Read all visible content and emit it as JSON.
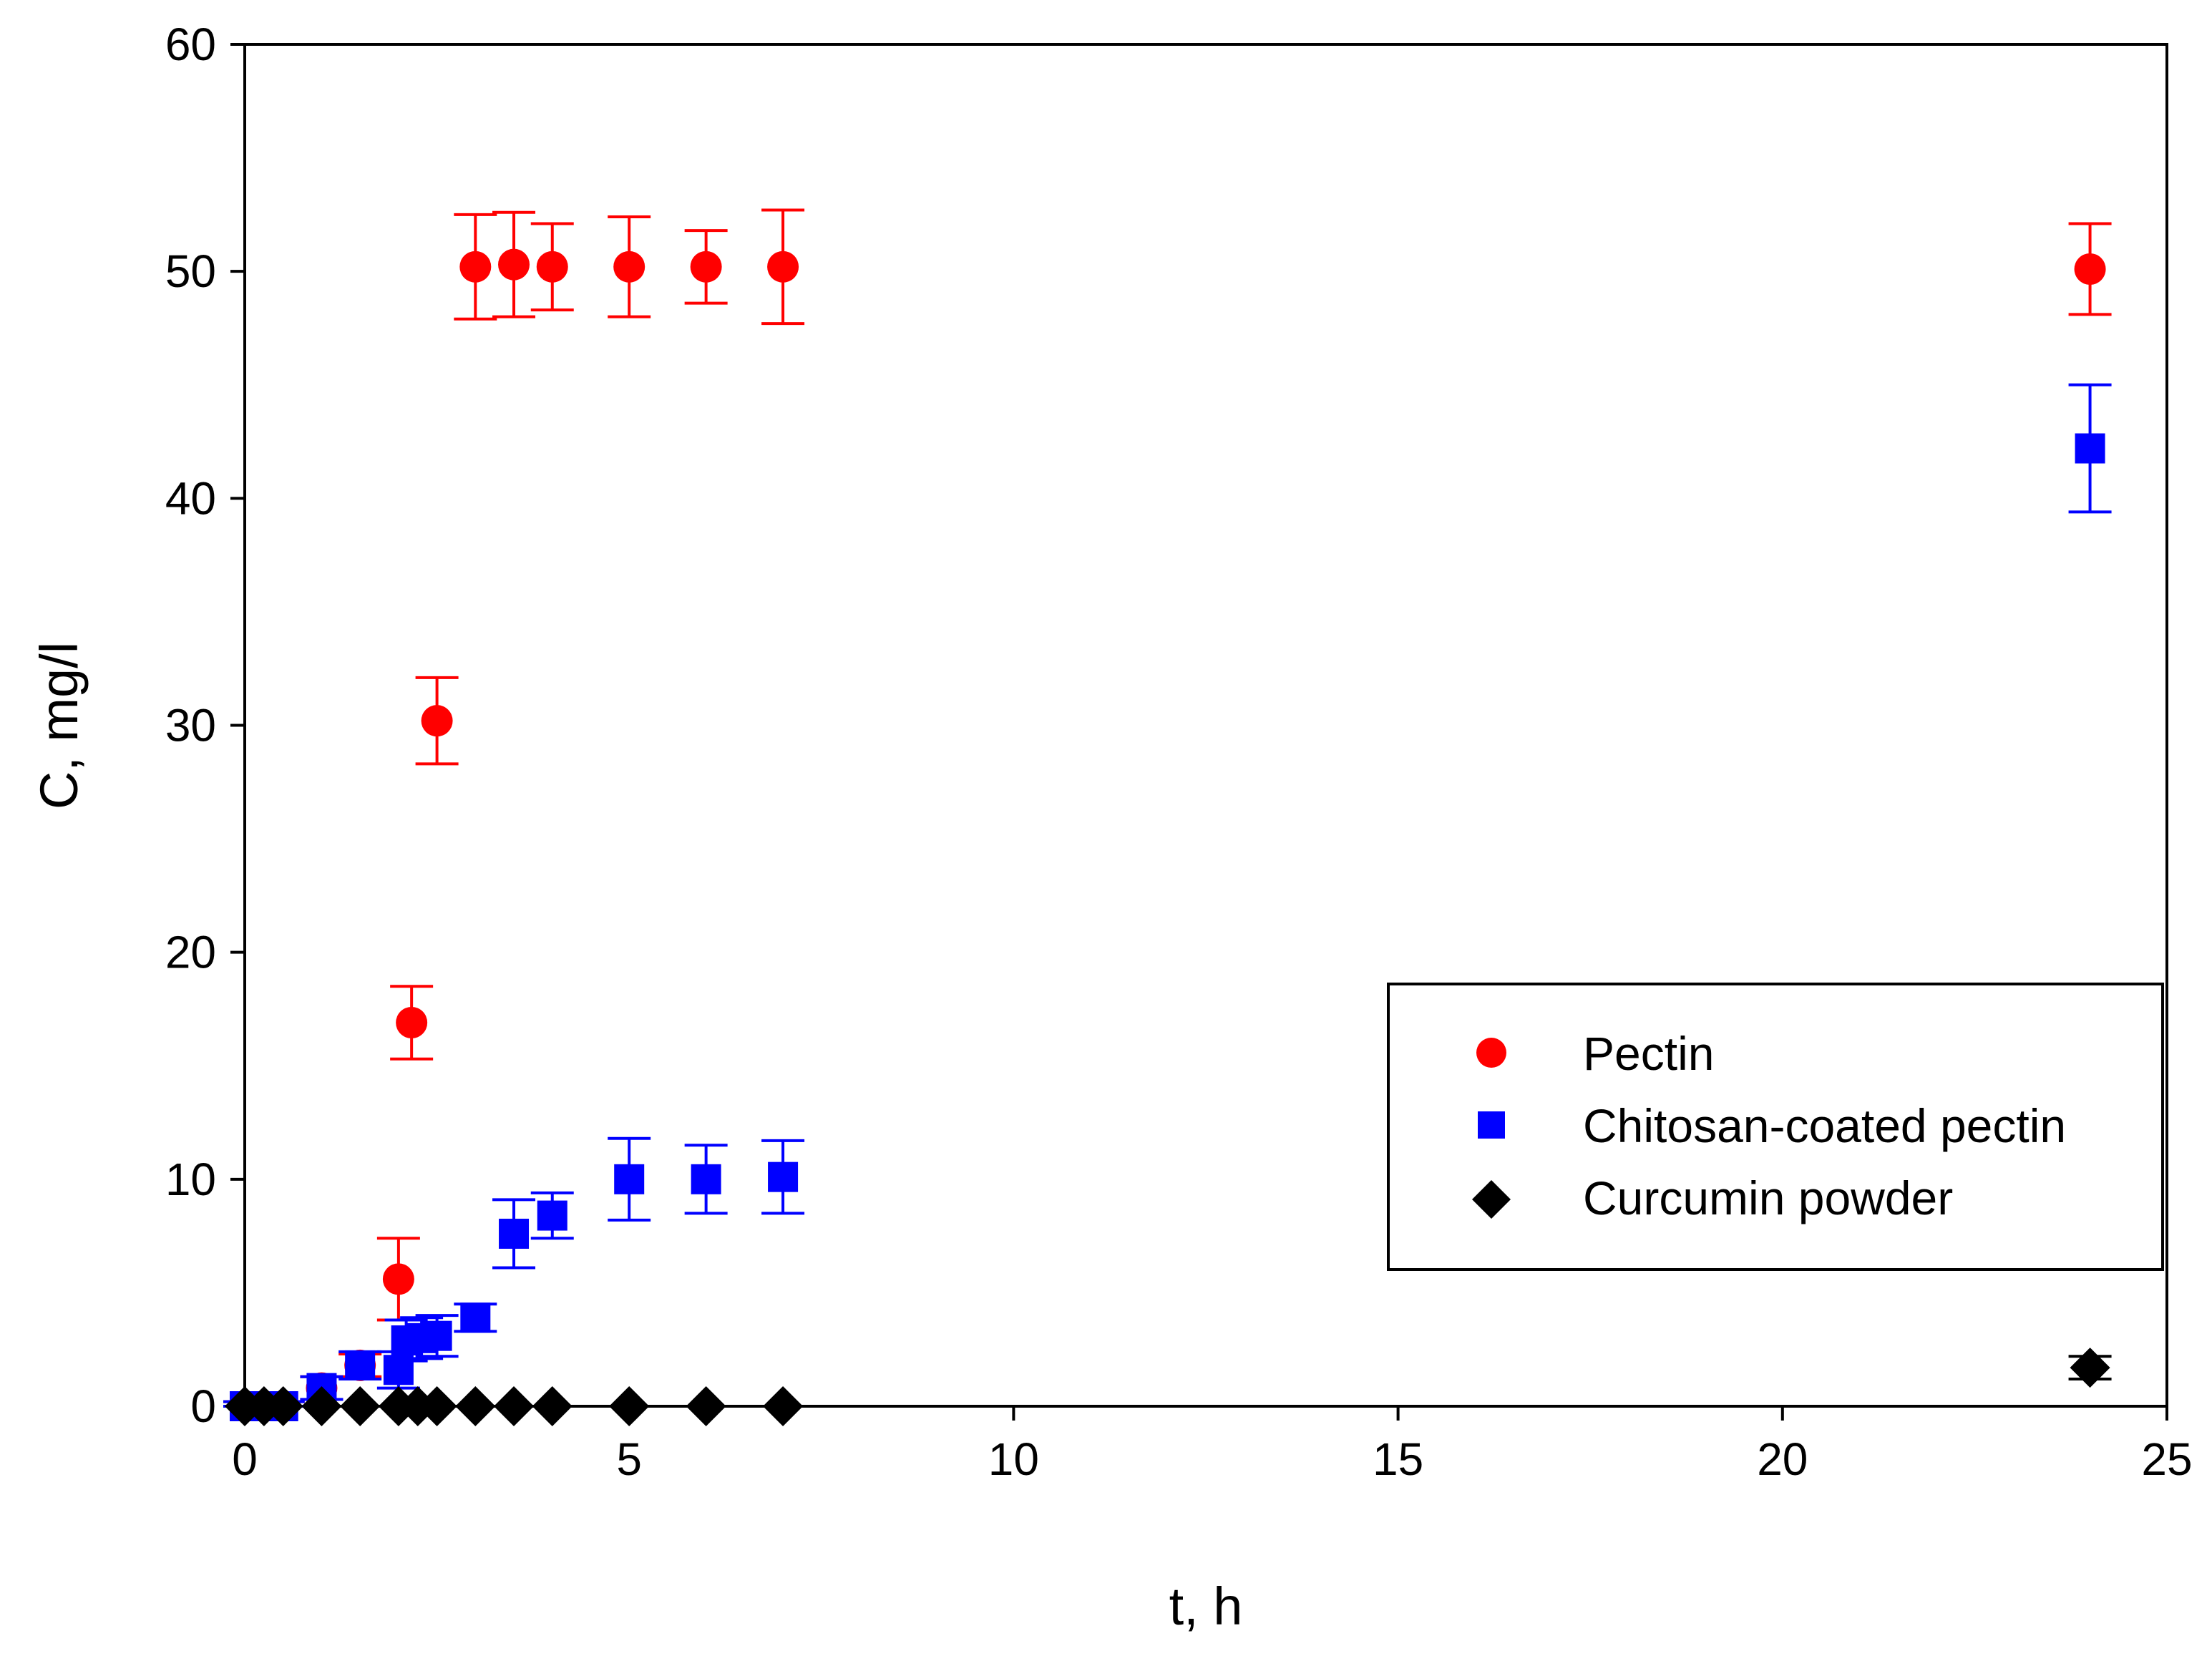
{
  "chart_data": {
    "type": "scatter",
    "title": "",
    "xlabel": "t, h",
    "ylabel": "C, mg/l",
    "xlim": [
      0,
      25
    ],
    "ylim": [
      0,
      60
    ],
    "x_ticks": [
      0,
      5,
      10,
      15,
      20,
      25
    ],
    "y_ticks": [
      0,
      10,
      20,
      30,
      40,
      50,
      60
    ],
    "x_tick_labels": [
      "0",
      "5",
      "10",
      "15",
      "20",
      "25"
    ],
    "y_tick_labels": [
      "0",
      "10",
      "20",
      "30",
      "40",
      "50",
      "60"
    ],
    "grid": false,
    "error_bars": true,
    "legend": {
      "position": "center-right"
    },
    "series": [
      {
        "name": "Pectin",
        "marker": "circle",
        "color": "#ff0000",
        "points": [
          {
            "x": 0,
            "y": 0,
            "err": 0.2
          },
          {
            "x": 0.25,
            "y": 0,
            "err": 0.2
          },
          {
            "x": 0.5,
            "y": 0,
            "err": 0.2
          },
          {
            "x": 1,
            "y": 0.8,
            "err": 0.5
          },
          {
            "x": 1.5,
            "y": 1.8,
            "err": 0.5
          },
          {
            "x": 2,
            "y": 5.6,
            "err": 1.8
          },
          {
            "x": 2.17,
            "y": 16.9,
            "err": 1.6
          },
          {
            "x": 2.5,
            "y": 30.2,
            "err": 1.9
          },
          {
            "x": 3,
            "y": 50.2,
            "err": 2.3
          },
          {
            "x": 3.5,
            "y": 50.3,
            "err": 2.3
          },
          {
            "x": 4,
            "y": 50.2,
            "err": 1.9
          },
          {
            "x": 5,
            "y": 50.2,
            "err": 2.2
          },
          {
            "x": 6,
            "y": 50.2,
            "err": 1.6
          },
          {
            "x": 7,
            "y": 50.2,
            "err": 2.5
          },
          {
            "x": 24,
            "y": 50.1,
            "err": 2.0
          }
        ]
      },
      {
        "name": "Chitosan-coated pectin",
        "marker": "square",
        "color": "#0000ff",
        "points": [
          {
            "x": 0,
            "y": 0,
            "err": 0.2
          },
          {
            "x": 0.25,
            "y": 0,
            "err": 0.2
          },
          {
            "x": 0.5,
            "y": 0,
            "err": 0.2
          },
          {
            "x": 1,
            "y": 0.8,
            "err": 0.5
          },
          {
            "x": 1.5,
            "y": 1.8,
            "err": 0.6
          },
          {
            "x": 2,
            "y": 1.6,
            "err": 0.8
          },
          {
            "x": 2.1,
            "y": 2.9,
            "err": 0.9
          },
          {
            "x": 2.3,
            "y": 3.0,
            "err": 0.9
          },
          {
            "x": 2.5,
            "y": 3.1,
            "err": 0.9
          },
          {
            "x": 3,
            "y": 3.9,
            "err": 0.6
          },
          {
            "x": 3.5,
            "y": 7.6,
            "err": 1.5
          },
          {
            "x": 4,
            "y": 8.4,
            "err": 1.0
          },
          {
            "x": 5,
            "y": 10.0,
            "err": 1.8
          },
          {
            "x": 6,
            "y": 10.0,
            "err": 1.5
          },
          {
            "x": 7,
            "y": 10.1,
            "err": 1.6
          },
          {
            "x": 24,
            "y": 42.2,
            "err": 2.8
          }
        ]
      },
      {
        "name": "Curcumin powder",
        "marker": "diamond",
        "color": "#000000",
        "points": [
          {
            "x": 0,
            "y": 0,
            "err": 0
          },
          {
            "x": 0.25,
            "y": 0,
            "err": 0
          },
          {
            "x": 0.5,
            "y": 0,
            "err": 0
          },
          {
            "x": 1,
            "y": 0,
            "err": 0
          },
          {
            "x": 1.5,
            "y": 0,
            "err": 0
          },
          {
            "x": 2,
            "y": 0,
            "err": 0
          },
          {
            "x": 2.25,
            "y": 0,
            "err": 0
          },
          {
            "x": 2.5,
            "y": 0,
            "err": 0
          },
          {
            "x": 3,
            "y": 0,
            "err": 0
          },
          {
            "x": 3.5,
            "y": 0,
            "err": 0
          },
          {
            "x": 4,
            "y": 0,
            "err": 0
          },
          {
            "x": 5,
            "y": 0,
            "err": 0
          },
          {
            "x": 6,
            "y": 0,
            "err": 0
          },
          {
            "x": 7,
            "y": 0,
            "err": 0
          },
          {
            "x": 24,
            "y": 1.7,
            "err": 0.5
          }
        ]
      }
    ]
  }
}
